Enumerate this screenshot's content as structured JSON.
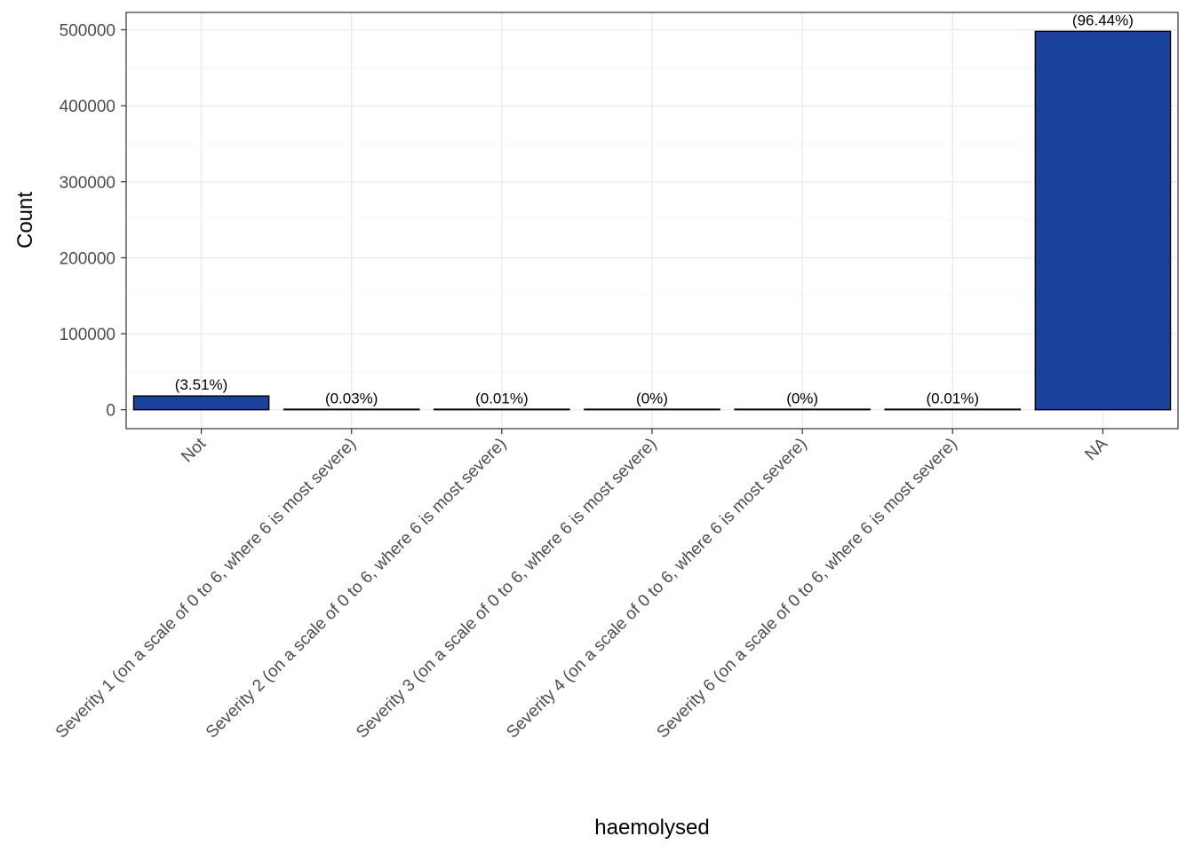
{
  "chart_data": {
    "type": "bar",
    "title": "",
    "xlabel": "haemolysed",
    "ylabel": "Count",
    "categories": [
      "Not",
      "Severity 1 (on a scale of 0 to 6, where 6 is most severe)",
      "Severity 2 (on a scale of 0 to 6, where 6 is most severe)",
      "Severity 3 (on a scale of 0 to 6, where 6 is most severe)",
      "Severity 4 (on a scale of 0 to 6, where 6 is most severe)",
      "Severity 6 (on a scale of 0 to 6, where 6 is most severe)",
      "NA"
    ],
    "values": [
      18130,
      155,
      52,
      10,
      10,
      52,
      497900
    ],
    "percent_labels": [
      "(3.51%)",
      "(0.03%)",
      "(0.01%)",
      "(0%)",
      "(0%)",
      "(0.01%)",
      "(96.44%)"
    ],
    "ylim": [
      -24900,
      522800
    ],
    "yticks": [
      0,
      100000,
      200000,
      300000,
      400000,
      500000
    ],
    "ytick_labels": [
      "0",
      "100000",
      "200000",
      "300000",
      "400000",
      "500000"
    ],
    "grid": true,
    "legend": "none",
    "colors": {
      "bar_fill": "#1a429a",
      "bar_stroke": "#000000",
      "grid_major": "#ebebeb",
      "grid_minor": "#f5f5f5",
      "panel_border": "#333333"
    }
  }
}
